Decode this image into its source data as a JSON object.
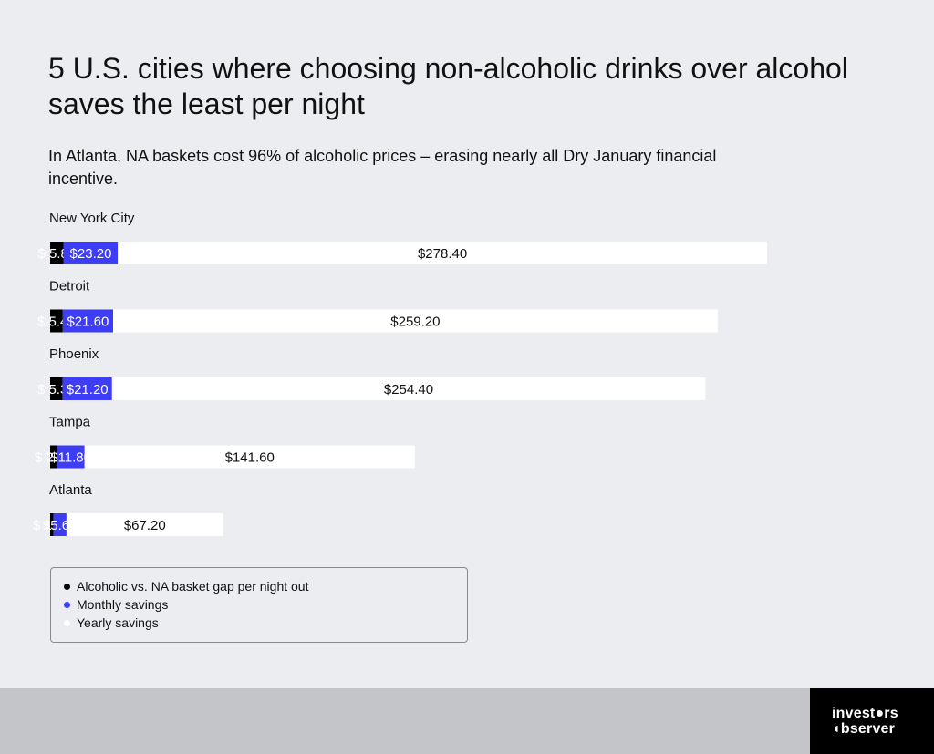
{
  "title": "5 U.S. cities where choosing non-alcoholic drinks over alcohol saves the least per night",
  "subtitle": "In Atlanta, NA baskets cost 96% of alcoholic prices – erasing nearly all Dry January financial incentive.",
  "colors": {
    "gap": "#000000",
    "monthly": "#3d3df5",
    "yearly": "#ffffff",
    "background": "#ecedf1"
  },
  "chart_data": {
    "type": "bar",
    "orientation": "horizontal",
    "stacked": true,
    "categories": [
      "New York City",
      "Detroit",
      "Phoenix",
      "Tampa",
      "Atlanta"
    ],
    "series": [
      {
        "name": "Alcoholic vs. NA basket gap per night out",
        "values": [
          5.8,
          5.4,
          5.3,
          2.95,
          1.4
        ],
        "labels": [
          "$ 5.80",
          "$ 5.40",
          "$ 5.30",
          "$ 2.95",
          "$ 1.40"
        ]
      },
      {
        "name": "Monthly savings",
        "values": [
          23.2,
          21.6,
          21.2,
          11.8,
          5.6
        ],
        "labels": [
          "$23.20",
          "$21.60",
          "$21.20",
          "$11.80",
          "$5.60"
        ]
      },
      {
        "name": "Yearly savings",
        "values": [
          278.4,
          259.2,
          254.4,
          141.6,
          67.2
        ],
        "labels": [
          "$278.40",
          "$259.20",
          "$254.40",
          "$141.60",
          "$67.20"
        ]
      }
    ],
    "legend": "bottom-left",
    "grid": false
  },
  "legend": [
    {
      "label": "Alcoholic vs. NA basket gap per night out",
      "color": "#000000"
    },
    {
      "label": "Monthly savings",
      "color": "#3d3df5"
    },
    {
      "label": "Yearly savings",
      "color": "#ffffff"
    }
  ],
  "brand": {
    "line1": "invest●rs",
    "line2": "◖bserver"
  }
}
